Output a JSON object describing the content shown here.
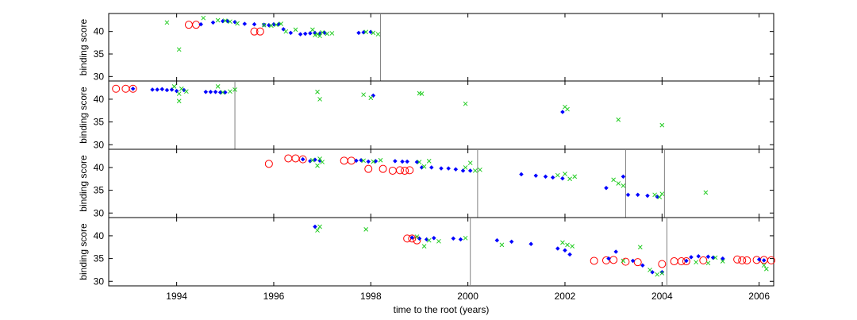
{
  "chart_data": {
    "type": "scatter",
    "xlabel": "time to the root (years)",
    "xlim": [
      1992.6,
      2006.3
    ],
    "xticks": [
      1994,
      1996,
      1998,
      2000,
      2002,
      2004,
      2006
    ],
    "ylim": [
      29,
      44
    ],
    "yticks": [
      30,
      35,
      40
    ],
    "colors": {
      "circle": "#ff0000",
      "diamond": "#0000ff",
      "cross": "#22cc22",
      "vline": "#808080"
    },
    "panels": [
      {
        "ylabel": "binding score",
        "vlines": [
          1998.2
        ],
        "series": [
          {
            "marker": "circle",
            "points": [
              [
                1994.25,
                41.5
              ],
              [
                1994.4,
                41.5
              ],
              [
                1995.6,
                40.0
              ],
              [
                1995.72,
                40.0
              ]
            ]
          },
          {
            "marker": "diamond",
            "points": [
              [
                1994.5,
                41.6
              ],
              [
                1994.75,
                42.0
              ],
              [
                1994.95,
                42.3
              ],
              [
                1995.05,
                42.3
              ],
              [
                1995.2,
                42.1
              ],
              [
                1995.4,
                41.7
              ],
              [
                1995.6,
                41.6
              ],
              [
                1995.8,
                41.5
              ],
              [
                1995.9,
                41.4
              ],
              [
                1996.0,
                41.6
              ],
              [
                1996.1,
                41.6
              ],
              [
                1996.2,
                40.5
              ],
              [
                1996.35,
                39.7
              ],
              [
                1996.55,
                39.4
              ],
              [
                1996.65,
                39.5
              ],
              [
                1996.75,
                39.6
              ],
              [
                1996.85,
                39.7
              ],
              [
                1996.95,
                39.6
              ],
              [
                1997.05,
                39.7
              ],
              [
                1997.75,
                39.7
              ],
              [
                1997.85,
                39.8
              ],
              [
                1998.0,
                39.9
              ]
            ]
          },
          {
            "marker": "cross",
            "points": [
              [
                1993.8,
                42.0
              ],
              [
                1994.05,
                36.0
              ],
              [
                1994.55,
                43.0
              ],
              [
                1994.85,
                42.5
              ],
              [
                1995.0,
                42.4
              ],
              [
                1995.1,
                42.2
              ],
              [
                1995.25,
                41.8
              ],
              [
                1995.8,
                41.4
              ],
              [
                1995.95,
                41.3
              ],
              [
                1996.05,
                41.5
              ],
              [
                1996.15,
                41.7
              ],
              [
                1996.25,
                40.0
              ],
              [
                1996.45,
                40.4
              ],
              [
                1996.8,
                40.4
              ],
              [
                1996.85,
                39.2
              ],
              [
                1996.9,
                39.4
              ],
              [
                1996.95,
                39.0
              ],
              [
                1997.0,
                39.8
              ],
              [
                1997.1,
                39.5
              ],
              [
                1997.2,
                39.6
              ],
              [
                1997.9,
                39.9
              ],
              [
                1998.05,
                39.7
              ],
              [
                1998.15,
                39.4
              ]
            ]
          }
        ]
      },
      {
        "ylabel": "binding score",
        "vlines": [
          1995.2
        ],
        "series": [
          {
            "marker": "circle",
            "points": [
              [
                1992.75,
                42.3
              ],
              [
                1992.95,
                42.3
              ],
              [
                1993.1,
                42.3
              ]
            ]
          },
          {
            "marker": "diamond",
            "points": [
              [
                1993.1,
                42.3
              ],
              [
                1993.5,
                42.1
              ],
              [
                1993.6,
                42.1
              ],
              [
                1993.7,
                42.2
              ],
              [
                1993.8,
                42.0
              ],
              [
                1993.9,
                42.1
              ],
              [
                1994.0,
                41.8
              ],
              [
                1994.15,
                42.0
              ],
              [
                1994.6,
                41.6
              ],
              [
                1994.7,
                41.6
              ],
              [
                1994.8,
                41.6
              ],
              [
                1994.9,
                41.5
              ],
              [
                1995.0,
                41.5
              ],
              [
                1998.05,
                40.8
              ],
              [
                2001.95,
                37.2
              ]
            ]
          },
          {
            "marker": "cross",
            "points": [
              [
                1993.95,
                42.8
              ],
              [
                1994.05,
                41.2
              ],
              [
                1994.1,
                42.3
              ],
              [
                1994.2,
                41.7
              ],
              [
                1994.05,
                39.6
              ],
              [
                1994.85,
                42.8
              ],
              [
                1994.95,
                41.5
              ],
              [
                1995.1,
                41.7
              ],
              [
                1995.2,
                42.1
              ],
              [
                1996.9,
                41.6
              ],
              [
                1996.95,
                40.0
              ],
              [
                1997.85,
                41.0
              ],
              [
                1998.0,
                40.3
              ],
              [
                1999.0,
                41.3
              ],
              [
                1999.05,
                41.2
              ],
              [
                1999.95,
                39.0
              ],
              [
                2002.0,
                38.3
              ],
              [
                2002.05,
                37.8
              ],
              [
                2003.1,
                35.5
              ],
              [
                2004.0,
                34.3
              ]
            ]
          }
        ]
      },
      {
        "ylabel": "binding score",
        "vlines": [
          2000.2,
          2003.25,
          2004.05
        ],
        "series": [
          {
            "marker": "circle",
            "points": [
              [
                1995.9,
                40.8
              ],
              [
                1996.3,
                42.0
              ],
              [
                1996.45,
                42.0
              ],
              [
                1996.6,
                41.8
              ],
              [
                1997.45,
                41.5
              ],
              [
                1997.6,
                41.5
              ],
              [
                1997.95,
                39.7
              ],
              [
                1998.25,
                39.7
              ],
              [
                1998.45,
                39.3
              ],
              [
                1998.6,
                39.4
              ],
              [
                1998.7,
                39.3
              ],
              [
                1998.8,
                39.4
              ]
            ]
          },
          {
            "marker": "diamond",
            "points": [
              [
                1996.6,
                41.8
              ],
              [
                1996.75,
                41.4
              ],
              [
                1996.85,
                41.7
              ],
              [
                1996.95,
                41.5
              ],
              [
                1997.7,
                41.5
              ],
              [
                1997.8,
                41.6
              ],
              [
                1997.95,
                41.3
              ],
              [
                1998.1,
                41.4
              ],
              [
                1998.5,
                41.4
              ],
              [
                1998.65,
                41.3
              ],
              [
                1998.75,
                41.3
              ],
              [
                1998.95,
                41.2
              ],
              [
                1999.05,
                40.0
              ],
              [
                1999.25,
                40.0
              ],
              [
                1999.45,
                39.8
              ],
              [
                1999.6,
                39.8
              ],
              [
                1999.75,
                39.6
              ],
              [
                1999.9,
                39.3
              ],
              [
                2000.05,
                39.3
              ],
              [
                2001.1,
                38.5
              ],
              [
                2001.4,
                38.2
              ],
              [
                2001.6,
                38.0
              ],
              [
                2001.75,
                37.8
              ],
              [
                2001.95,
                37.6
              ],
              [
                2002.85,
                35.5
              ],
              [
                2003.2,
                38.0
              ],
              [
                2003.3,
                34.0
              ],
              [
                2003.5,
                34.0
              ],
              [
                2003.7,
                33.8
              ],
              [
                2003.9,
                33.6
              ]
            ]
          },
          {
            "marker": "cross",
            "points": [
              [
                1996.8,
                41.6
              ],
              [
                1996.9,
                40.4
              ],
              [
                1996.95,
                41.9
              ],
              [
                1997.0,
                41.2
              ],
              [
                1997.85,
                41.5
              ],
              [
                1998.05,
                41.3
              ],
              [
                1998.2,
                41.6
              ],
              [
                1999.0,
                41.2
              ],
              [
                1999.1,
                40.2
              ],
              [
                1999.2,
                41.4
              ],
              [
                1999.95,
                40.0
              ],
              [
                2000.05,
                41.0
              ],
              [
                2000.15,
                39.3
              ],
              [
                2000.25,
                39.5
              ],
              [
                2001.85,
                38.3
              ],
              [
                2002.0,
                38.6
              ],
              [
                2002.1,
                37.5
              ],
              [
                2002.2,
                38.0
              ],
              [
                2003.0,
                37.3
              ],
              [
                2003.1,
                36.5
              ],
              [
                2003.2,
                36.0
              ],
              [
                2003.85,
                34.0
              ],
              [
                2003.95,
                33.5
              ],
              [
                2004.0,
                34.2
              ],
              [
                2004.9,
                34.5
              ]
            ]
          }
        ]
      },
      {
        "ylabel": "binding score",
        "vlines": [
          2000.05,
          2004.1
        ],
        "series": [
          {
            "marker": "circle",
            "points": [
              [
                1998.75,
                39.4
              ],
              [
                1998.85,
                39.4
              ],
              [
                1998.95,
                39.0
              ],
              [
                2002.6,
                34.5
              ],
              [
                2002.85,
                34.6
              ],
              [
                2003.0,
                34.7
              ],
              [
                2003.25,
                34.3
              ],
              [
                2003.5,
                34.2
              ],
              [
                2004.0,
                33.8
              ],
              [
                2004.25,
                34.4
              ],
              [
                2004.4,
                34.4
              ],
              [
                2004.5,
                34.4
              ],
              [
                2004.85,
                34.6
              ],
              [
                2005.55,
                34.8
              ],
              [
                2005.65,
                34.6
              ],
              [
                2005.75,
                34.6
              ],
              [
                2005.95,
                34.7
              ],
              [
                2006.1,
                34.7
              ],
              [
                2006.25,
                34.6
              ]
            ]
          },
          {
            "marker": "diamond",
            "points": [
              [
                1996.85,
                42.0
              ],
              [
                1998.85,
                39.6
              ],
              [
                1999.0,
                39.4
              ],
              [
                1999.15,
                39.2
              ],
              [
                1999.3,
                39.5
              ],
              [
                1999.7,
                39.4
              ],
              [
                1999.85,
                39.2
              ],
              [
                2000.6,
                39.0
              ],
              [
                2000.9,
                38.7
              ],
              [
                2001.3,
                38.2
              ],
              [
                2001.85,
                37.2
              ],
              [
                2002.0,
                36.8
              ],
              [
                2002.1,
                35.9
              ],
              [
                2002.9,
                35.0
              ],
              [
                2003.05,
                36.5
              ],
              [
                2003.4,
                34.5
              ],
              [
                2003.6,
                33.5
              ],
              [
                2003.8,
                32.0
              ],
              [
                2004.0,
                32.0
              ],
              [
                2004.5,
                34.5
              ],
              [
                2004.6,
                35.3
              ],
              [
                2004.75,
                35.5
              ],
              [
                2004.95,
                35.4
              ],
              [
                2005.05,
                35.2
              ],
              [
                2005.25,
                35.0
              ],
              [
                2006.0,
                34.8
              ],
              [
                2006.1,
                34.6
              ]
            ]
          },
          {
            "marker": "cross",
            "points": [
              [
                1996.95,
                42.0
              ],
              [
                1996.9,
                41.2
              ],
              [
                1997.9,
                41.4
              ],
              [
                1998.95,
                39.8
              ],
              [
                1999.1,
                37.7
              ],
              [
                1999.2,
                39.0
              ],
              [
                1999.4,
                38.8
              ],
              [
                1999.95,
                39.5
              ],
              [
                2000.7,
                38.0
              ],
              [
                2001.95,
                38.5
              ],
              [
                2002.05,
                38.0
              ],
              [
                2002.15,
                37.7
              ],
              [
                2003.2,
                34.5
              ],
              [
                2003.55,
                37.5
              ],
              [
                2003.75,
                32.5
              ],
              [
                2003.9,
                31.5
              ],
              [
                2004.0,
                31.8
              ],
              [
                2004.7,
                34.2
              ],
              [
                2004.95,
                34.0
              ],
              [
                2005.1,
                35.2
              ],
              [
                2005.25,
                34.4
              ],
              [
                2006.1,
                33.5
              ],
              [
                2006.15,
                32.7
              ]
            ]
          }
        ]
      }
    ]
  }
}
